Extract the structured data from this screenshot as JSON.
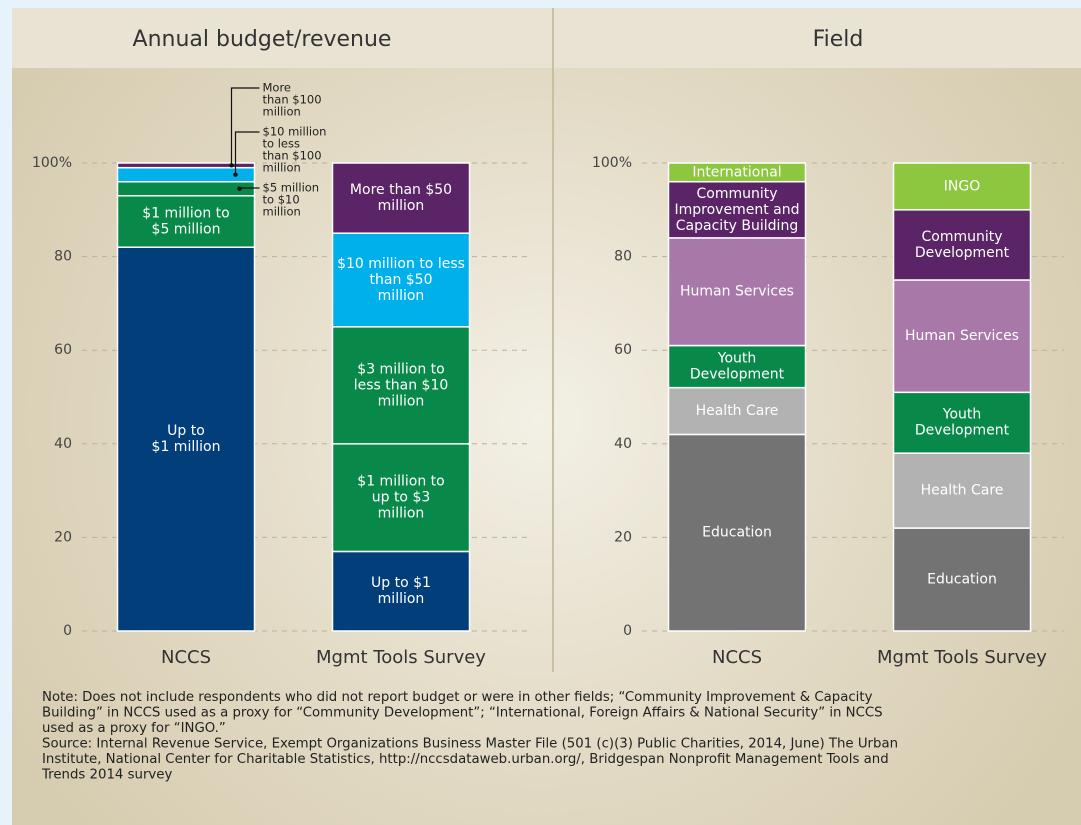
{
  "chart_data": [
    {
      "type": "stacked_bar",
      "title": "Annual budget/revenue",
      "ylim": [
        0,
        100
      ],
      "yticks": [
        0,
        20,
        40,
        60,
        80,
        {
          "value": 100,
          "label": "100%"
        }
      ],
      "grid": true,
      "bars": [
        {
          "name": "NCCS",
          "segments": [
            {
              "label": [
                "Up to",
                "$1 million"
              ],
              "value": 82,
              "color": "#023f7a"
            },
            {
              "label": [
                "$1 million to",
                "$5 million"
              ],
              "value": 11,
              "color": "#08894a"
            },
            {
              "label": [
                "$5 million",
                "to $10",
                "million"
              ],
              "value": 3,
              "color": "#08894a"
            },
            {
              "label": [
                "$10 million",
                "to less",
                "than $100",
                "million"
              ],
              "value": 3,
              "color": "#00b0ea"
            },
            {
              "label": [
                "More",
                "than $100",
                "million"
              ],
              "value": 1,
              "color": "#5a2466"
            }
          ]
        },
        {
          "name": "Mgmt Tools Survey",
          "segments": [
            {
              "label": [
                "Up to $1",
                "million"
              ],
              "value": 17,
              "color": "#023f7a"
            },
            {
              "label": [
                "$1 million to",
                "up to $3",
                "million"
              ],
              "value": 23,
              "color": "#08894a"
            },
            {
              "label": [
                "$3 million to",
                "less than $10",
                "million"
              ],
              "value": 25,
              "color": "#08894a"
            },
            {
              "label": [
                "$10 million to less",
                "than $50",
                "million"
              ],
              "value": 20,
              "color": "#00b0ea"
            },
            {
              "label": [
                "More than $50",
                "million"
              ],
              "value": 15,
              "color": "#5a2466"
            }
          ]
        }
      ]
    },
    {
      "type": "stacked_bar",
      "title": "Field",
      "ylim": [
        0,
        100
      ],
      "yticks": [
        0,
        20,
        40,
        60,
        80,
        {
          "value": 100,
          "label": "100%"
        }
      ],
      "grid": true,
      "bars": [
        {
          "name": "NCCS",
          "segments": [
            {
              "label": [
                "Education"
              ],
              "value": 42,
              "color": "#737373"
            },
            {
              "label": [
                "Health Care"
              ],
              "value": 10,
              "color": "#b2b2b2"
            },
            {
              "label": [
                "Youth",
                "Development"
              ],
              "value": 9,
              "color": "#08894a"
            },
            {
              "label": [
                "Human Services"
              ],
              "value": 23,
              "color": "#a879a8"
            },
            {
              "label": [
                "Community",
                "Improvement and",
                "Capacity Building"
              ],
              "value": 12,
              "color": "#5a2466"
            },
            {
              "label": [
                "International"
              ],
              "value": 4,
              "color": "#8dc63f"
            }
          ]
        },
        {
          "name": "Mgmt Tools Survey",
          "segments": [
            {
              "label": [
                "Education"
              ],
              "value": 22,
              "color": "#737373"
            },
            {
              "label": [
                "Health Care"
              ],
              "value": 16,
              "color": "#b2b2b2"
            },
            {
              "label": [
                "Youth",
                "Development"
              ],
              "value": 13,
              "color": "#08894a"
            },
            {
              "label": [
                "Human Services"
              ],
              "value": 24,
              "color": "#a879a8"
            },
            {
              "label": [
                "Community",
                "Development"
              ],
              "value": 15,
              "color": "#5a2466"
            },
            {
              "label": [
                "INGO"
              ],
              "value": 10,
              "color": "#8dc63f"
            }
          ]
        }
      ]
    }
  ],
  "note": [
    "Note: Does not include respondents who did not report budget or were in other fields; “Community Improvement & Capacity",
    "Building” in NCCS used as a proxy for “Community Development”; “International, Foreign Affairs & National Security” in NCCS",
    "used as a proxy for “INGO.”"
  ],
  "source": [
    "Source: Internal Revenue Service, Exempt Organizations Business Master File (501 (c)(3) Public Charities, 2014, June) The Urban",
    "Institute, National Center for Charitable Statistics, http://nccsdataweb.urban.org/, Bridgespan Nonprofit Management Tools and",
    "Trends 2014 survey"
  ]
}
